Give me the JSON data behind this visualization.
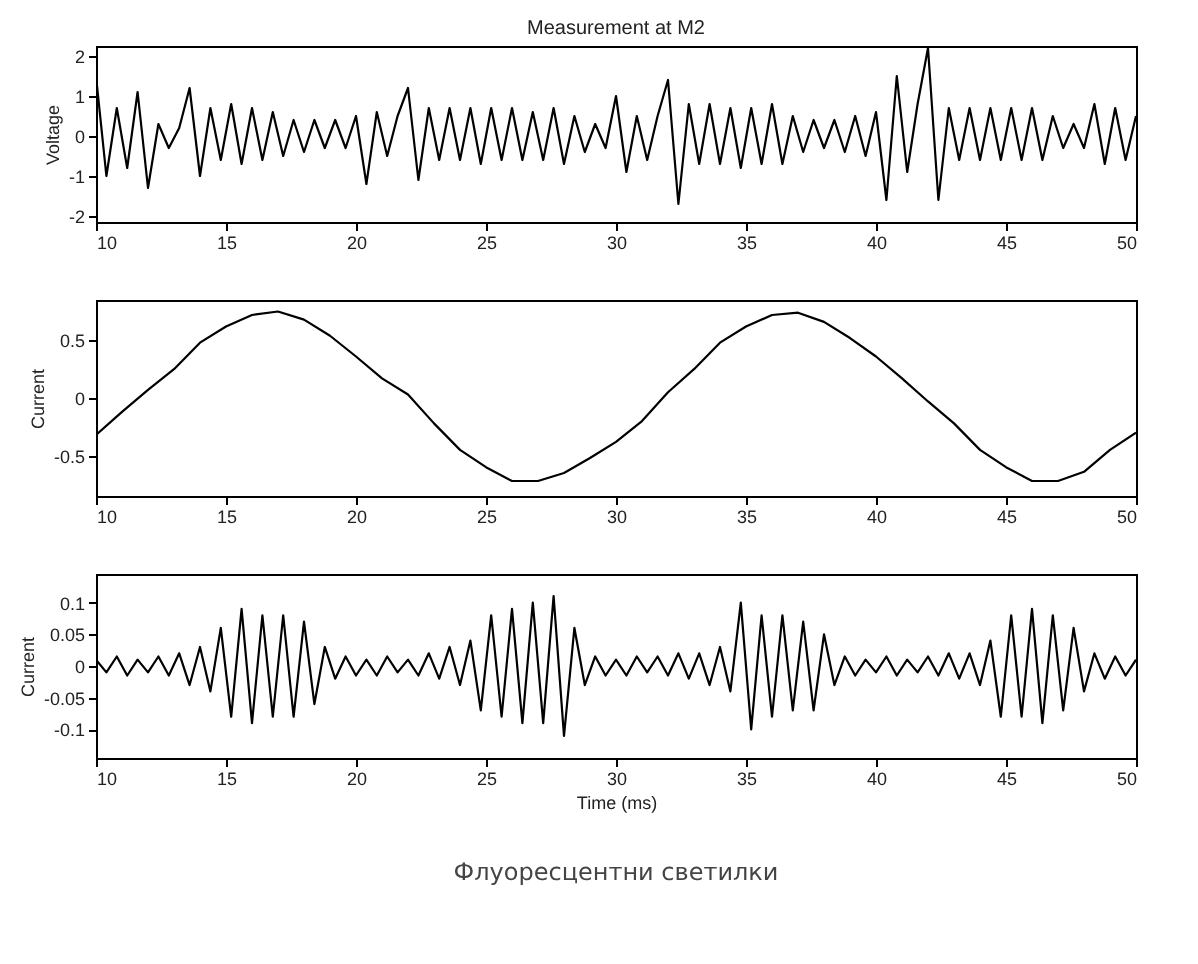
{
  "chart_data": [
    {
      "type": "line",
      "title": "Measurement at M2",
      "ylabel": "Voltage",
      "xlim": [
        10,
        50
      ],
      "xticks": [
        10,
        15,
        20,
        25,
        30,
        35,
        40,
        45,
        50
      ],
      "ylim": [
        -2.15,
        2.25
      ],
      "yticks": [
        -2,
        -1,
        0,
        1,
        2
      ],
      "grid": false,
      "x": [
        10,
        10.4,
        10.8,
        11.2,
        11.6,
        12,
        12.4,
        12.8,
        13.2,
        13.6,
        14,
        14.4,
        14.8,
        15.2,
        15.6,
        16,
        16.4,
        16.8,
        17.2,
        17.6,
        18,
        18.4,
        18.8,
        19.2,
        19.6,
        20,
        20.4,
        20.8,
        21.2,
        21.6,
        22,
        22.4,
        22.8,
        23.2,
        23.6,
        24,
        24.4,
        24.8,
        25.2,
        25.6,
        26,
        26.4,
        26.8,
        27.2,
        27.6,
        28,
        28.4,
        28.8,
        29.2,
        29.6,
        30,
        30.4,
        30.8,
        31.2,
        31.6,
        32,
        32.4,
        32.8,
        33.2,
        33.6,
        34,
        34.4,
        34.8,
        35.2,
        35.6,
        36,
        36.4,
        36.8,
        37.2,
        37.6,
        38,
        38.4,
        38.8,
        39.2,
        39.6,
        40,
        40.4,
        40.8,
        41.2,
        41.6,
        42,
        42.4,
        42.8,
        43.2,
        43.6,
        44,
        44.4,
        44.8,
        45.2,
        45.6,
        46,
        46.4,
        46.8,
        47.2,
        47.6,
        48,
        48.4,
        48.8,
        49.2,
        49.6,
        50
      ],
      "series": [
        {
          "color": "#000000",
          "values": [
            1.5,
            -1.0,
            0.7,
            -0.8,
            1.1,
            -1.3,
            0.3,
            -0.3,
            0.2,
            1.2,
            -1.0,
            0.7,
            -0.6,
            0.8,
            -0.7,
            0.7,
            -0.6,
            0.6,
            -0.5,
            0.4,
            -0.4,
            0.4,
            -0.3,
            0.4,
            -0.3,
            0.5,
            -1.2,
            0.6,
            -0.5,
            0.5,
            1.2,
            -1.1,
            0.7,
            -0.6,
            0.7,
            -0.6,
            0.7,
            -0.7,
            0.7,
            -0.6,
            0.7,
            -0.6,
            0.6,
            -0.6,
            0.7,
            -0.7,
            0.5,
            -0.4,
            0.3,
            -0.3,
            1.0,
            -0.9,
            0.5,
            -0.6,
            0.5,
            1.4,
            -1.7,
            0.8,
            -0.7,
            0.8,
            -0.7,
            0.7,
            -0.8,
            0.7,
            -0.7,
            0.8,
            -0.7,
            0.5,
            -0.4,
            0.4,
            -0.3,
            0.4,
            -0.4,
            0.5,
            -0.5,
            0.6,
            -1.6,
            1.5,
            -0.9,
            0.8,
            2.2,
            -1.6,
            0.7,
            -0.6,
            0.7,
            -0.6,
            0.7,
            -0.6,
            0.7,
            -0.6,
            0.7,
            -0.6,
            0.5,
            -0.3,
            0.3,
            -0.3,
            0.8,
            -0.7,
            0.7,
            -0.6,
            0.5
          ]
        }
      ]
    },
    {
      "type": "line",
      "ylabel": "Current",
      "xlim": [
        10,
        50
      ],
      "xticks": [
        10,
        15,
        20,
        25,
        30,
        35,
        40,
        45,
        50
      ],
      "ylim": [
        -0.85,
        0.85
      ],
      "yticks": [
        -0.5,
        0,
        0.5
      ],
      "grid": false,
      "x": [
        10,
        11,
        12,
        13,
        14,
        15,
        16,
        17,
        18,
        19,
        20,
        21,
        22,
        23,
        24,
        25,
        26,
        27,
        28,
        29,
        30,
        31,
        32,
        33,
        34,
        35,
        36,
        37,
        38,
        39,
        40,
        41,
        42,
        43,
        44,
        45,
        46,
        47,
        48,
        49,
        50
      ],
      "series": [
        {
          "color": "#000000",
          "values": [
            -0.32,
            -0.12,
            0.07,
            0.25,
            0.48,
            0.62,
            0.72,
            0.75,
            0.68,
            0.54,
            0.36,
            0.17,
            0.03,
            -0.22,
            -0.45,
            -0.6,
            -0.72,
            -0.72,
            -0.65,
            -0.52,
            -0.38,
            -0.2,
            0.05,
            0.25,
            0.48,
            0.62,
            0.72,
            0.74,
            0.66,
            0.52,
            0.36,
            0.17,
            -0.03,
            -0.22,
            -0.45,
            -0.6,
            -0.72,
            -0.72,
            -0.64,
            -0.45,
            -0.3
          ]
        }
      ]
    },
    {
      "type": "line",
      "ylabel": "Current",
      "xlabel": "Time (ms)",
      "annotations": [
        "Флуоресцентни светилки"
      ],
      "xlim": [
        10,
        50
      ],
      "xticks": [
        10,
        15,
        20,
        25,
        30,
        35,
        40,
        45,
        50
      ],
      "ylim": [
        -0.145,
        0.145
      ],
      "yticks": [
        -0.1,
        -0.05,
        0,
        0.05,
        0.1
      ],
      "grid": false,
      "x": [
        10,
        10.4,
        10.8,
        11.2,
        11.6,
        12,
        12.4,
        12.8,
        13.2,
        13.6,
        14,
        14.4,
        14.8,
        15.2,
        15.6,
        16,
        16.4,
        16.8,
        17.2,
        17.6,
        18,
        18.4,
        18.8,
        19.2,
        19.6,
        20,
        20.4,
        20.8,
        21.2,
        21.6,
        22,
        22.4,
        22.8,
        23.2,
        23.6,
        24,
        24.4,
        24.8,
        25.2,
        25.6,
        26,
        26.4,
        26.8,
        27.2,
        27.6,
        28,
        28.4,
        28.8,
        29.2,
        29.6,
        30,
        30.4,
        30.8,
        31.2,
        31.6,
        32,
        32.4,
        32.8,
        33.2,
        33.6,
        34,
        34.4,
        34.8,
        35.2,
        35.6,
        36,
        36.4,
        36.8,
        37.2,
        37.6,
        38,
        38.4,
        38.8,
        39.2,
        39.6,
        40,
        40.4,
        40.8,
        41.2,
        41.6,
        42,
        42.4,
        42.8,
        43.2,
        43.6,
        44,
        44.4,
        44.8,
        45.2,
        45.6,
        46,
        46.4,
        46.8,
        47.2,
        47.6,
        48,
        48.4,
        48.8,
        49.2,
        49.6,
        50
      ],
      "series": [
        {
          "color": "#000000",
          "values": [
            0.01,
            -0.01,
            0.015,
            -0.015,
            0.01,
            -0.01,
            0.015,
            -0.015,
            0.02,
            -0.03,
            0.03,
            -0.04,
            0.06,
            -0.08,
            0.09,
            -0.09,
            0.08,
            -0.08,
            0.08,
            -0.08,
            0.07,
            -0.06,
            0.03,
            -0.02,
            0.015,
            -0.015,
            0.01,
            -0.015,
            0.015,
            -0.01,
            0.01,
            -0.015,
            0.02,
            -0.02,
            0.03,
            -0.03,
            0.04,
            -0.07,
            0.08,
            -0.08,
            0.09,
            -0.09,
            0.1,
            -0.09,
            0.11,
            -0.11,
            0.06,
            -0.03,
            0.015,
            -0.015,
            0.01,
            -0.015,
            0.015,
            -0.01,
            0.015,
            -0.015,
            0.02,
            -0.02,
            0.02,
            -0.03,
            0.03,
            -0.04,
            0.1,
            -0.1,
            0.08,
            -0.08,
            0.08,
            -0.07,
            0.07,
            -0.07,
            0.05,
            -0.03,
            0.015,
            -0.015,
            0.01,
            -0.01,
            0.015,
            -0.015,
            0.01,
            -0.01,
            0.015,
            -0.015,
            0.02,
            -0.02,
            0.02,
            -0.03,
            0.04,
            -0.08,
            0.08,
            -0.08,
            0.09,
            -0.09,
            0.08,
            -0.07,
            0.06,
            -0.04,
            0.02,
            -0.02,
            0.015,
            -0.015,
            0.01
          ]
        }
      ]
    }
  ]
}
